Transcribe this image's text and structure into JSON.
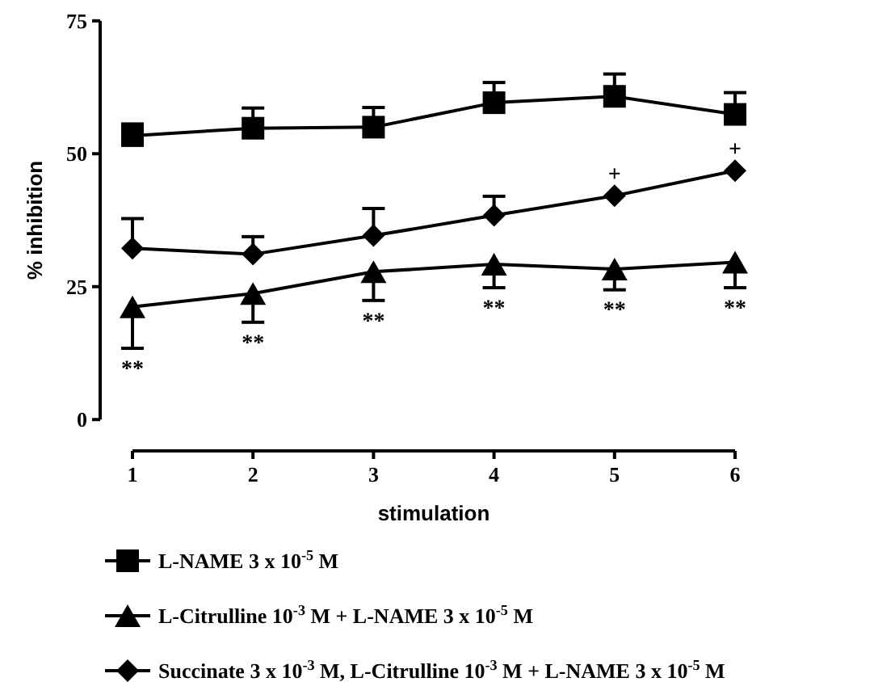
{
  "chart_data": {
    "type": "line",
    "xlabel": "stimulation",
    "ylabel": "% inhibition",
    "x": [
      1,
      2,
      3,
      4,
      5,
      6
    ],
    "xlim": [
      1,
      6
    ],
    "xticks": [
      1,
      2,
      3,
      4,
      5,
      6
    ],
    "ylim": [
      0,
      75
    ],
    "yticks": [
      0,
      25,
      50,
      75
    ],
    "legend": "bottom",
    "grid": false,
    "line_style": "solid",
    "series": [
      {
        "name": "L-NAME 3 x 10$^{-5}$ M",
        "color": "#000000",
        "marker": "square",
        "values": [
          53.4,
          54.8,
          55.0,
          59.6,
          60.8,
          57.4
        ],
        "errors": [
          [
            53.4,
            55.6
          ],
          [
            54.8,
            58.6
          ],
          [
            55.0,
            58.7
          ],
          [
            59.6,
            63.4
          ],
          [
            60.8,
            65.0
          ],
          [
            57.4,
            61.5
          ]
        ]
      },
      {
        "name": "L-Citrulline 10$^{-3}$ M + L-NAME 3 x 10$^{-5}$ M",
        "color": "#000000",
        "marker": "triangle",
        "values": [
          21.2,
          23.7,
          27.8,
          29.2,
          28.3,
          29.6
        ],
        "errors": [
          [
            13.4,
            21.2
          ],
          [
            18.3,
            23.7
          ],
          [
            22.4,
            27.8
          ],
          [
            24.8,
            29.2
          ],
          [
            24.4,
            28.3
          ],
          [
            24.8,
            29.6
          ]
        ]
      },
      {
        "name": "Succinate 3 x 10$^{-3}$ M,  L-Citrulline 10$^{-3}$ M + L-NAME 3 x 10$^{-5}$ M",
        "color": "#000000",
        "marker": "diamond",
        "values": [
          32.2,
          31.1,
          34.6,
          38.4,
          42.1,
          46.8
        ],
        "errors": [
          [
            32.2,
            37.8
          ],
          [
            31.1,
            34.4
          ],
          [
            34.6,
            39.7
          ],
          [
            38.4,
            42.0
          ],
          null,
          null
        ]
      }
    ],
    "annotations": [
      {
        "text": "**",
        "x": 1,
        "y": 21.2
      },
      {
        "text": "**",
        "x": 2,
        "y": 23.7
      },
      {
        "text": "**",
        "x": 3,
        "y": 27.8
      },
      {
        "text": "**",
        "x": 4,
        "y": 29.2
      },
      {
        "text": "**",
        "x": 5,
        "y": 28.3
      },
      {
        "text": "**",
        "x": 6,
        "y": 29.6
      },
      {
        "text": "+",
        "x": 5,
        "y": 42.1
      },
      {
        "text": "+",
        "x": 6,
        "y": 46.8
      }
    ]
  }
}
